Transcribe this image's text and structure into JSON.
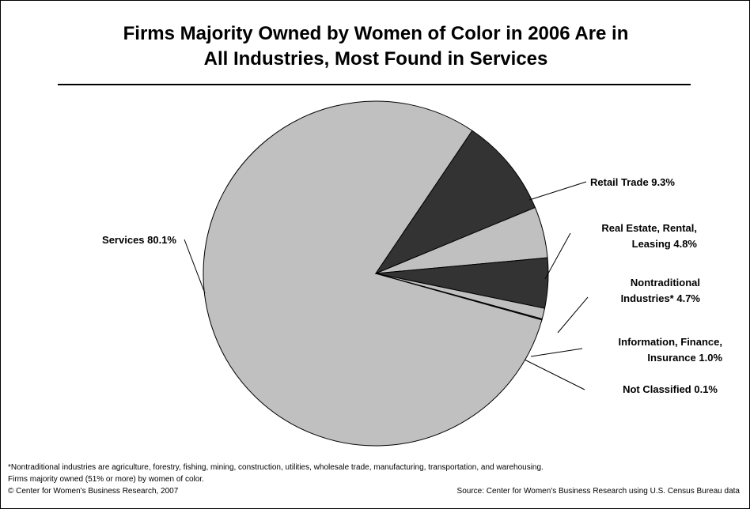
{
  "title": {
    "line1": "Firms Majority Owned by Women of Color in 2006 Are in",
    "line2": "All Industries, Most Found in Services"
  },
  "chart_data": {
    "type": "pie",
    "title": "Firms Majority Owned by Women of Color in 2006 Are in All Industries, Most Found in Services",
    "slices": [
      {
        "name": "Services",
        "value": 80.1,
        "label_lines": [
          "Services 80.1%"
        ],
        "color": "#c0c0c0"
      },
      {
        "name": "Retail Trade",
        "value": 9.3,
        "label_lines": [
          "Retail Trade 9.3%"
        ],
        "color": "#333333"
      },
      {
        "name": "Real Estate, Rental, Leasing",
        "value": 4.8,
        "label_lines": [
          "Real Estate, Rental,",
          "Leasing 4.8%"
        ],
        "color": "#c0c0c0"
      },
      {
        "name": "Nontraditional Industries*",
        "value": 4.7,
        "label_lines": [
          "Nontraditional",
          "Industries* 4.7%"
        ],
        "color": "#333333"
      },
      {
        "name": "Information, Finance, Insurance",
        "value": 1.0,
        "label_lines": [
          "Information, Finance,",
          "Insurance 1.0%"
        ],
        "color": "#c0c0c0"
      },
      {
        "name": "Not Classified",
        "value": 0.1,
        "label_lines": [
          "Not Classified 0.1%"
        ],
        "color": "#333333"
      }
    ]
  },
  "footer": {
    "note": "*Nontraditional industries are agriculture, forestry, fishing, mining, construction, utilities, wholesale trade, manufacturing, transportation, and warehousing.",
    "definition": "Firms majority owned (51% or more) by women of color.",
    "copyright": "© Center for Women's Business Research, 2007",
    "source": "Source: Center for Women's Business Research using U.S. Census Bureau data"
  }
}
